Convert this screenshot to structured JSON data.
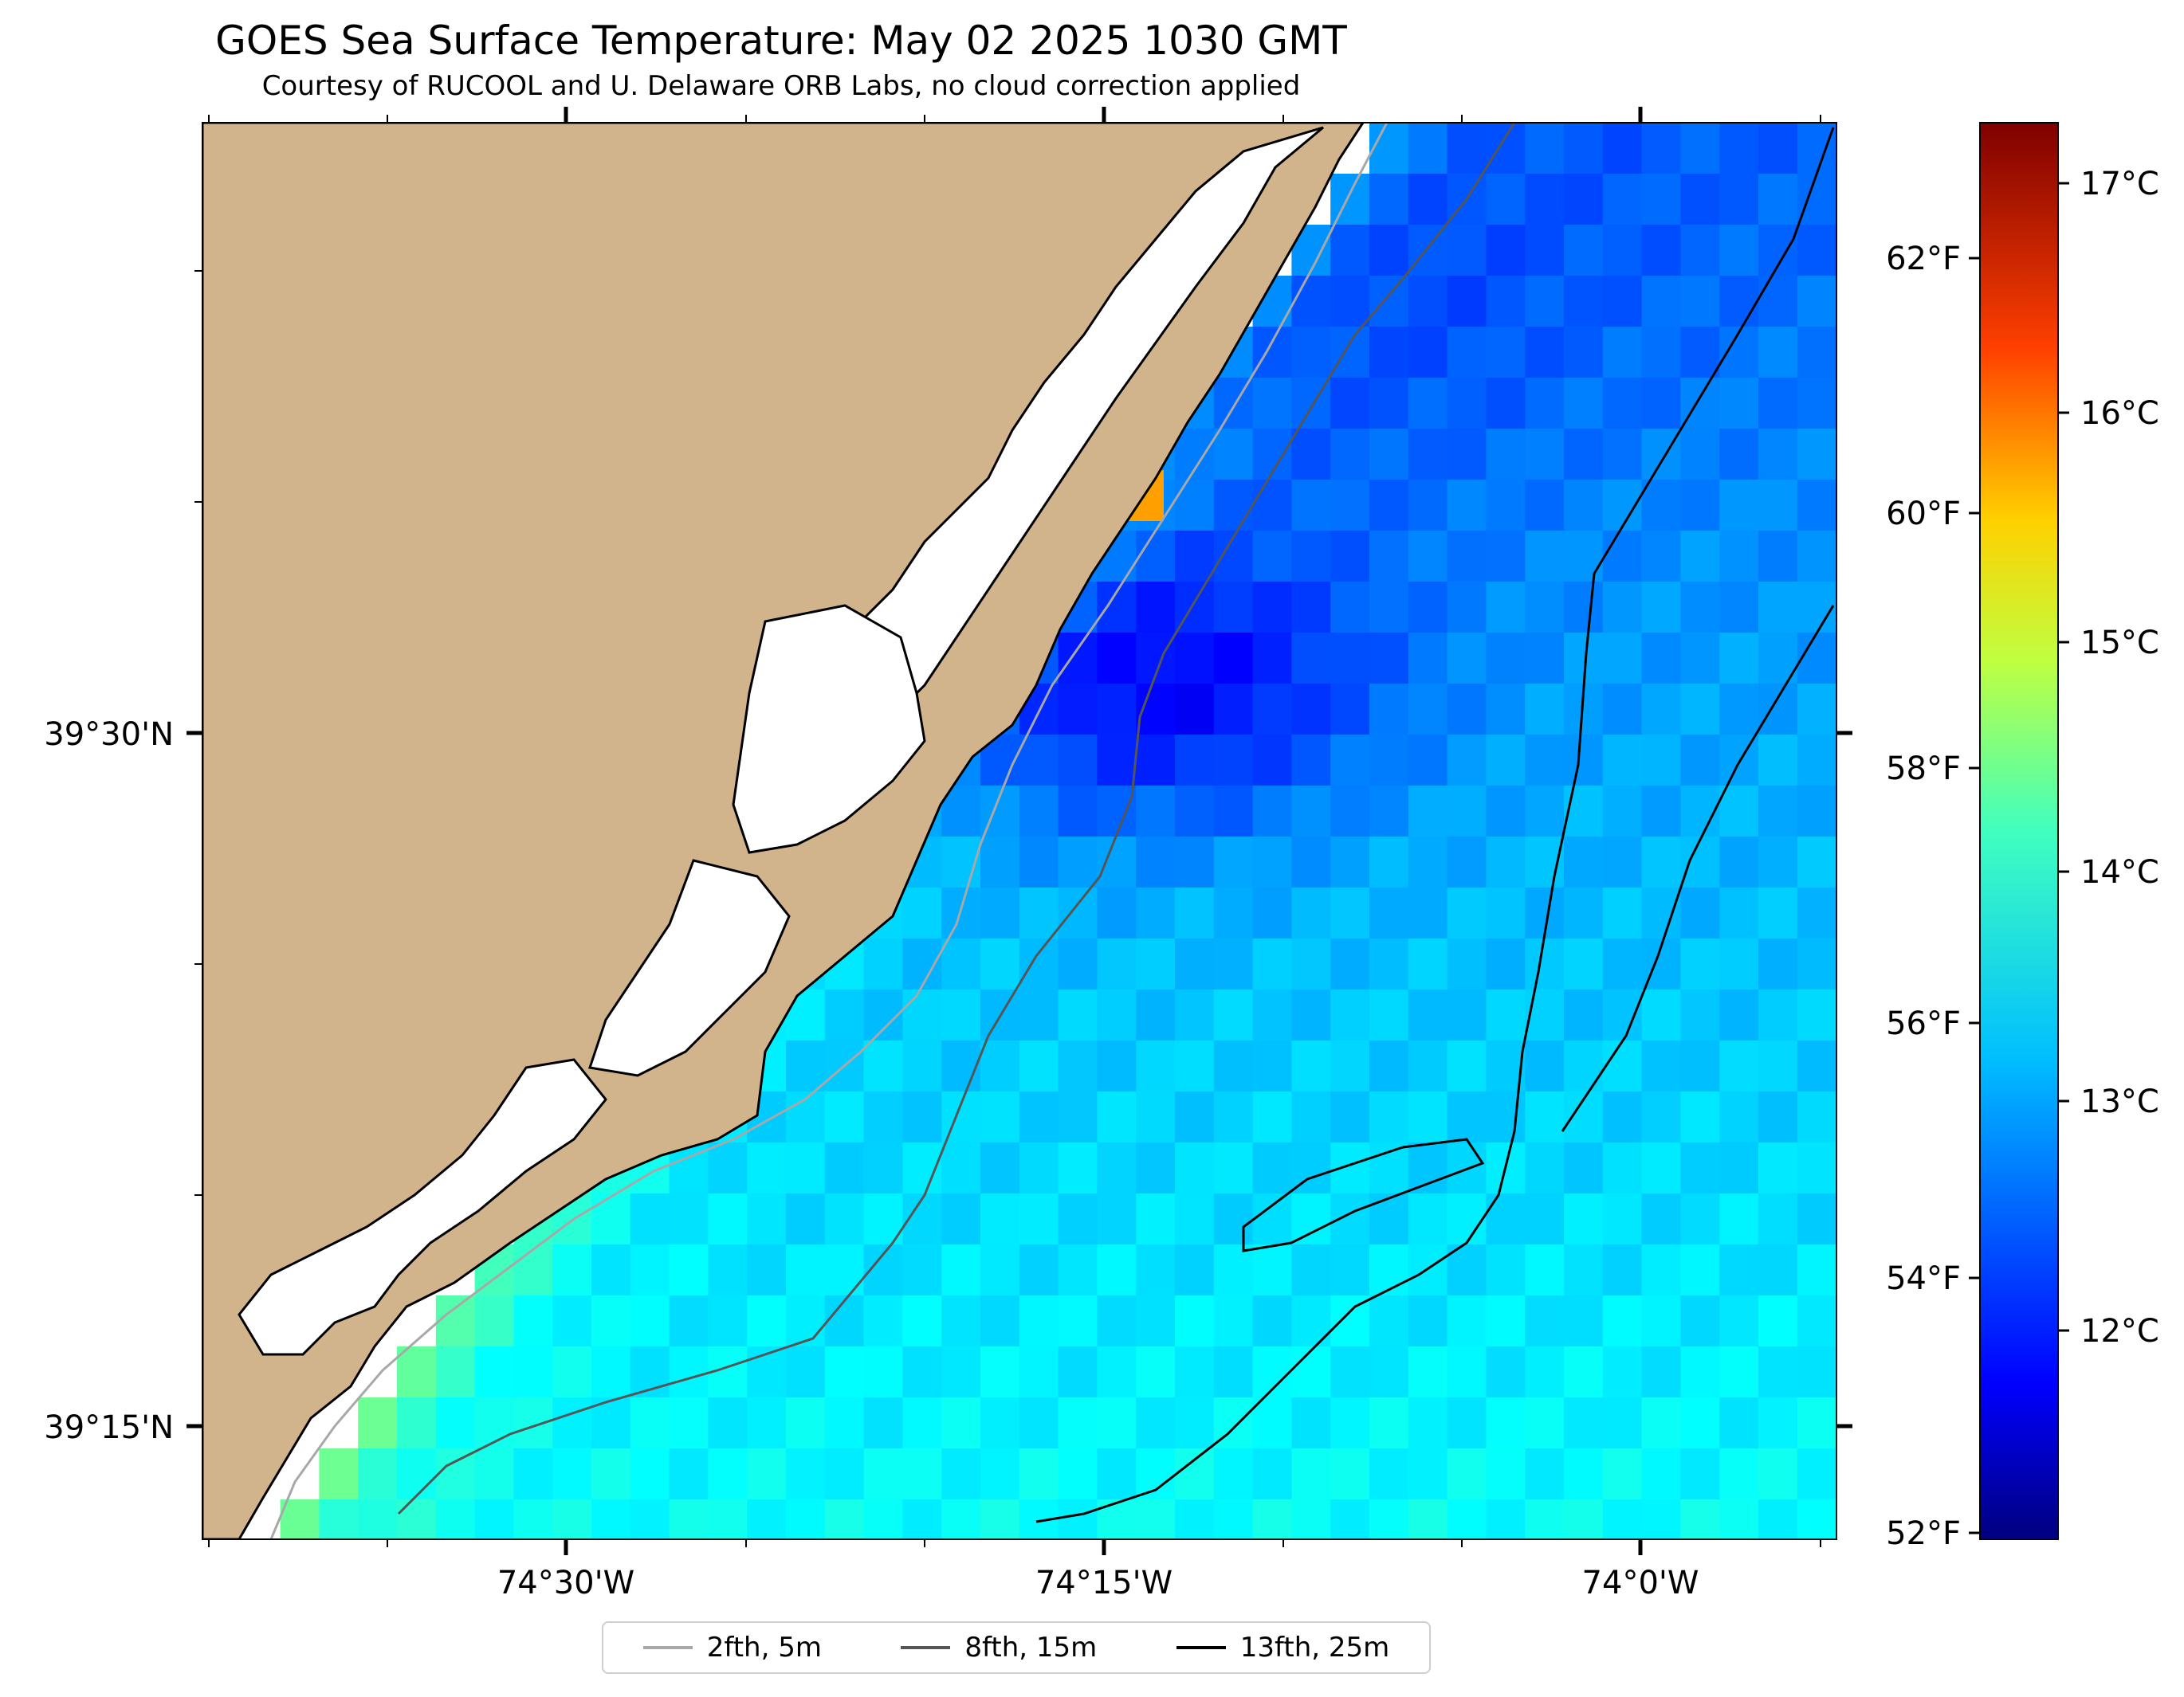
{
  "title": "GOES Sea Surface Temperature: May 02 2025 1030 GMT",
  "subtitle": "Courtesy of RUCOOL and U. Delaware ORB Labs, no cloud correction applied",
  "axes": {
    "x_ticks": [
      "74°30'W",
      "74°15'W",
      "74°0'W"
    ],
    "y_ticks": [
      "39°30'N",
      "39°15'N"
    ]
  },
  "colorbar": {
    "celsius_labels": [
      "17°C",
      "16°C",
      "15°C",
      "14°C",
      "13°C",
      "12°C"
    ],
    "fahrenheit_labels": [
      "62°F",
      "60°F",
      "58°F",
      "56°F",
      "54°F",
      "52°F"
    ],
    "colormap": "jet"
  },
  "legend": {
    "items": [
      {
        "label": "2fth, 5m",
        "color": "#a8a8a8"
      },
      {
        "label": "8fth, 15m",
        "color": "#555555"
      },
      {
        "label": "13fth, 25m",
        "color": "#000000"
      }
    ]
  },
  "colors": {
    "land": "#d2b48c",
    "coastline": "#000000"
  }
}
